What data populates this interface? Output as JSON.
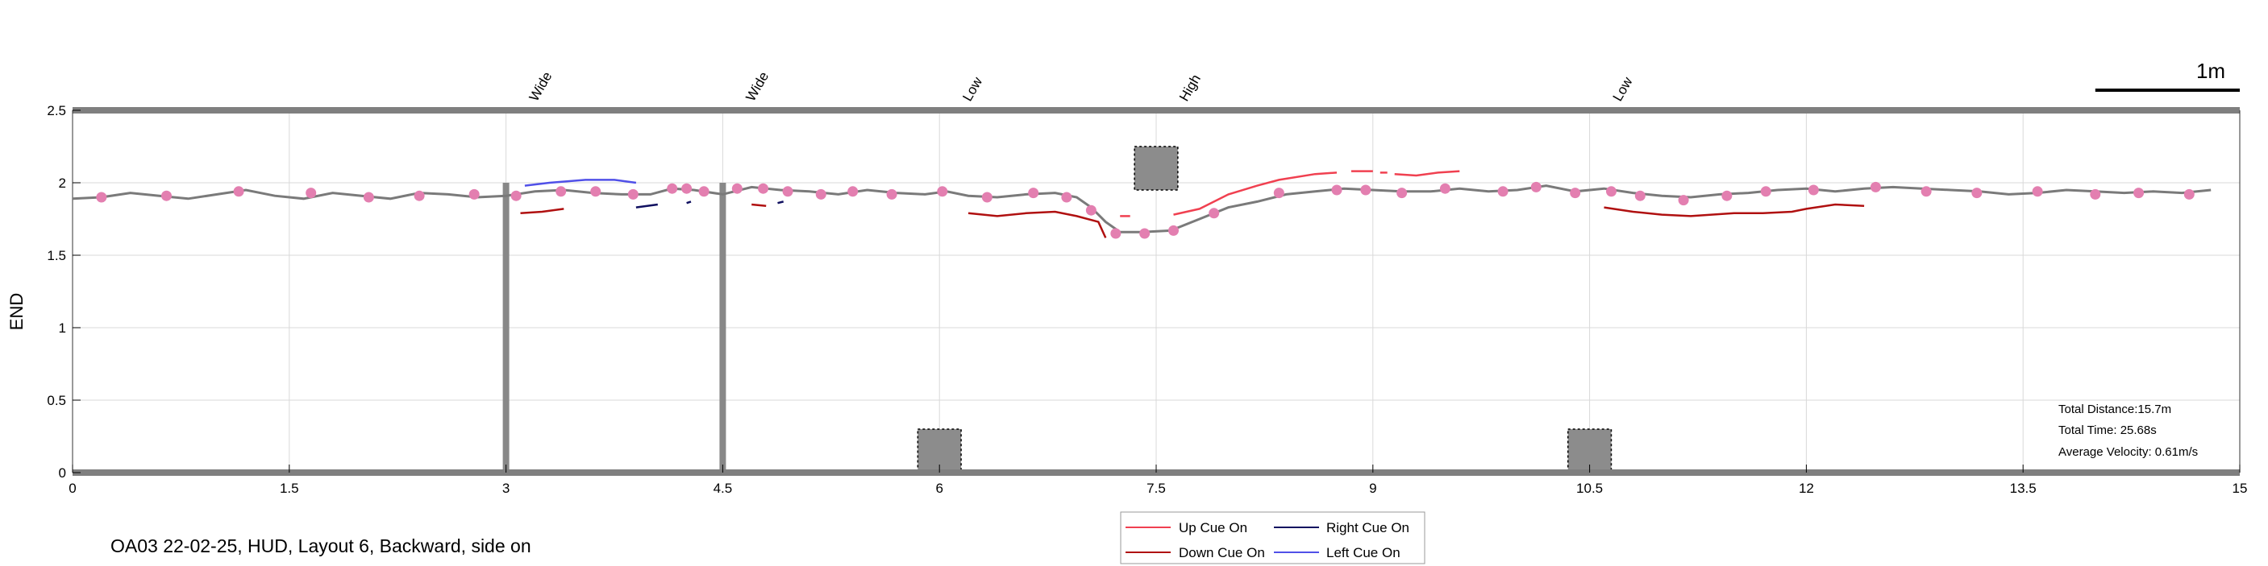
{
  "chart_data": {
    "type": "line",
    "footer": "OA03 22-02-25, HUD, Layout 6, Backward, side on",
    "ylabel": "END",
    "xlim": [
      0,
      15
    ],
    "ylim": [
      0,
      2.5
    ],
    "x_ticks": [
      0,
      1.5,
      3,
      4.5,
      6,
      7.5,
      9,
      10.5,
      12,
      13.5,
      15
    ],
    "x_tick_labels": [
      "0",
      "1.5",
      "3",
      "4.5",
      "6",
      "7.5",
      "9",
      "10.5",
      "12",
      "13.5",
      "15"
    ],
    "y_ticks": [
      0,
      0.5,
      1,
      1.5,
      2,
      2.5
    ],
    "y_tick_labels": [
      "0",
      "0.5",
      "1",
      "1.5",
      "2",
      "2.5"
    ],
    "grid": true,
    "scale_bar": {
      "label": "1m",
      "length": 1
    },
    "obstacles": [
      {
        "label": "Wide",
        "x": 3.0,
        "kind": "post"
      },
      {
        "label": "Wide",
        "x": 4.5,
        "kind": "post"
      },
      {
        "label": "Low",
        "x": 6.0,
        "kind": "low-box",
        "x0": 5.85,
        "x1": 6.15,
        "y0": 0,
        "y1": 0.3
      },
      {
        "label": "High",
        "x": 7.5,
        "kind": "high-box",
        "x0": 7.35,
        "x1": 7.65,
        "y0": 1.95,
        "y1": 2.25
      },
      {
        "label": "Low",
        "x": 10.5,
        "kind": "low-box",
        "x0": 10.35,
        "x1": 10.65,
        "y0": 0,
        "y1": 0.3
      }
    ],
    "series": [
      {
        "name": "Trajectory",
        "color": "#7a7a7a",
        "points": [
          [
            0,
            1.89
          ],
          [
            0.2,
            1.9
          ],
          [
            0.4,
            1.93
          ],
          [
            0.6,
            1.91
          ],
          [
            0.8,
            1.89
          ],
          [
            1.0,
            1.92
          ],
          [
            1.2,
            1.95
          ],
          [
            1.4,
            1.91
          ],
          [
            1.6,
            1.89
          ],
          [
            1.8,
            1.93
          ],
          [
            2.0,
            1.91
          ],
          [
            2.2,
            1.89
          ],
          [
            2.4,
            1.93
          ],
          [
            2.6,
            1.92
          ],
          [
            2.8,
            1.9
          ],
          [
            3.0,
            1.91
          ],
          [
            3.2,
            1.94
          ],
          [
            3.4,
            1.95
          ],
          [
            3.6,
            1.93
          ],
          [
            3.8,
            1.92
          ],
          [
            4.0,
            1.92
          ],
          [
            4.15,
            1.96
          ],
          [
            4.3,
            1.95
          ],
          [
            4.5,
            1.92
          ],
          [
            4.7,
            1.97
          ],
          [
            4.9,
            1.95
          ],
          [
            5.1,
            1.94
          ],
          [
            5.3,
            1.92
          ],
          [
            5.5,
            1.95
          ],
          [
            5.7,
            1.93
          ],
          [
            5.9,
            1.92
          ],
          [
            6.05,
            1.94
          ],
          [
            6.2,
            1.91
          ],
          [
            6.4,
            1.9
          ],
          [
            6.6,
            1.92
          ],
          [
            6.8,
            1.93
          ],
          [
            6.95,
            1.9
          ],
          [
            7.05,
            1.83
          ],
          [
            7.15,
            1.73
          ],
          [
            7.25,
            1.66
          ],
          [
            7.4,
            1.66
          ],
          [
            7.6,
            1.67
          ],
          [
            7.8,
            1.75
          ],
          [
            8.0,
            1.83
          ],
          [
            8.2,
            1.87
          ],
          [
            8.4,
            1.92
          ],
          [
            8.6,
            1.94
          ],
          [
            8.8,
            1.96
          ],
          [
            9.0,
            1.95
          ],
          [
            9.2,
            1.94
          ],
          [
            9.4,
            1.94
          ],
          [
            9.6,
            1.96
          ],
          [
            9.8,
            1.94
          ],
          [
            10.0,
            1.95
          ],
          [
            10.2,
            1.98
          ],
          [
            10.4,
            1.94
          ],
          [
            10.6,
            1.96
          ],
          [
            10.8,
            1.93
          ],
          [
            11.0,
            1.91
          ],
          [
            11.2,
            1.9
          ],
          [
            11.4,
            1.92
          ],
          [
            11.6,
            1.93
          ],
          [
            11.8,
            1.95
          ],
          [
            12.0,
            1.96
          ],
          [
            12.2,
            1.94
          ],
          [
            12.4,
            1.96
          ],
          [
            12.6,
            1.97
          ],
          [
            12.8,
            1.96
          ],
          [
            13.0,
            1.95
          ],
          [
            13.2,
            1.94
          ],
          [
            13.4,
            1.92
          ],
          [
            13.6,
            1.93
          ],
          [
            13.8,
            1.95
          ],
          [
            14.0,
            1.94
          ],
          [
            14.2,
            1.93
          ],
          [
            14.4,
            1.94
          ],
          [
            14.6,
            1.93
          ],
          [
            14.8,
            1.95
          ]
        ],
        "markers": [
          [
            0.2,
            1.9
          ],
          [
            0.65,
            1.91
          ],
          [
            1.15,
            1.94
          ],
          [
            1.65,
            1.93
          ],
          [
            2.05,
            1.9
          ],
          [
            2.4,
            1.91
          ],
          [
            2.78,
            1.92
          ],
          [
            3.07,
            1.91
          ],
          [
            3.38,
            1.94
          ],
          [
            3.62,
            1.94
          ],
          [
            3.88,
            1.92
          ],
          [
            4.15,
            1.96
          ],
          [
            4.25,
            1.96
          ],
          [
            4.37,
            1.94
          ],
          [
            4.6,
            1.96
          ],
          [
            4.78,
            1.96
          ],
          [
            4.95,
            1.94
          ],
          [
            5.18,
            1.92
          ],
          [
            5.4,
            1.94
          ],
          [
            5.67,
            1.92
          ],
          [
            6.02,
            1.94
          ],
          [
            6.33,
            1.9
          ],
          [
            6.65,
            1.93
          ],
          [
            6.88,
            1.9
          ],
          [
            7.05,
            1.81
          ],
          [
            7.22,
            1.65
          ],
          [
            7.42,
            1.65
          ],
          [
            7.62,
            1.67
          ],
          [
            7.9,
            1.79
          ],
          [
            8.35,
            1.93
          ],
          [
            8.75,
            1.95
          ],
          [
            8.95,
            1.95
          ],
          [
            9.2,
            1.93
          ],
          [
            9.5,
            1.96
          ],
          [
            9.9,
            1.94
          ],
          [
            10.13,
            1.97
          ],
          [
            10.4,
            1.93
          ],
          [
            10.65,
            1.94
          ],
          [
            10.85,
            1.91
          ],
          [
            11.15,
            1.88
          ],
          [
            11.45,
            1.91
          ],
          [
            11.72,
            1.94
          ],
          [
            12.05,
            1.95
          ],
          [
            12.48,
            1.97
          ],
          [
            12.83,
            1.94
          ],
          [
            13.18,
            1.93
          ],
          [
            13.6,
            1.94
          ],
          [
            14.0,
            1.92
          ],
          [
            14.3,
            1.93
          ],
          [
            14.65,
            1.92
          ]
        ]
      },
      {
        "name": "Up Cue On",
        "color": "#f04050",
        "segments": [
          [
            [
              7.25,
              1.77
            ],
            [
              7.32,
              1.77
            ]
          ],
          [
            [
              7.62,
              1.78
            ],
            [
              7.8,
              1.82
            ],
            [
              8.0,
              1.92
            ],
            [
              8.2,
              1.98
            ],
            [
              8.35,
              2.02
            ],
            [
              8.6,
              2.06
            ],
            [
              8.75,
              2.07
            ]
          ],
          [
            [
              8.85,
              2.08
            ],
            [
              9.0,
              2.08
            ]
          ],
          [
            [
              9.05,
              2.07
            ],
            [
              9.1,
              2.07
            ]
          ],
          [
            [
              9.15,
              2.06
            ],
            [
              9.3,
              2.05
            ],
            [
              9.45,
              2.07
            ],
            [
              9.6,
              2.08
            ]
          ]
        ]
      },
      {
        "name": "Down Cue On",
        "color": "#b01010",
        "segments": [
          [
            [
              3.1,
              1.79
            ],
            [
              3.25,
              1.8
            ],
            [
              3.4,
              1.82
            ]
          ],
          [
            [
              4.7,
              1.85
            ],
            [
              4.8,
              1.84
            ]
          ],
          [
            [
              6.2,
              1.79
            ],
            [
              6.4,
              1.77
            ],
            [
              6.6,
              1.79
            ],
            [
              6.8,
              1.8
            ],
            [
              6.95,
              1.77
            ],
            [
              7.1,
              1.73
            ],
            [
              7.15,
              1.62
            ]
          ],
          [
            [
              10.6,
              1.83
            ],
            [
              10.8,
              1.8
            ],
            [
              11.0,
              1.78
            ],
            [
              11.2,
              1.77
            ],
            [
              11.5,
              1.79
            ],
            [
              11.7,
              1.79
            ],
            [
              11.9,
              1.8
            ],
            [
              12.0,
              1.82
            ],
            [
              12.2,
              1.85
            ],
            [
              12.4,
              1.84
            ]
          ]
        ]
      },
      {
        "name": "Right Cue On",
        "color": "#101060",
        "segments": [
          [
            [
              3.9,
              1.83
            ],
            [
              4.05,
              1.85
            ]
          ],
          [
            [
              4.25,
              1.86
            ],
            [
              4.28,
              1.87
            ]
          ],
          [
            [
              4.88,
              1.86
            ],
            [
              4.92,
              1.87
            ]
          ]
        ]
      },
      {
        "name": "Left Cue On",
        "color": "#5050e8",
        "segments": [
          [
            [
              3.13,
              1.98
            ],
            [
              3.3,
              2.0
            ],
            [
              3.55,
              2.02
            ],
            [
              3.75,
              2.02
            ],
            [
              3.9,
              2.0
            ]
          ]
        ]
      }
    ],
    "legend": {
      "placement": "bottom-center",
      "entries": [
        {
          "label": "Up Cue On",
          "color": "#f04050"
        },
        {
          "label": "Right Cue On",
          "color": "#101060"
        },
        {
          "label": "Down Cue On",
          "color": "#b01010"
        },
        {
          "label": "Left Cue On",
          "color": "#5050e8"
        }
      ]
    },
    "stats": {
      "distance": "Total Distance:15.7m",
      "time": "Total Time: 25.68s",
      "velocity": "Average Velocity: 0.61m/s"
    }
  }
}
